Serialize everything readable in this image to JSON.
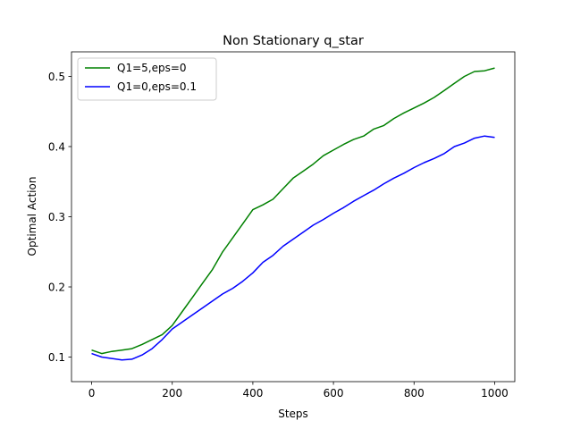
{
  "chart_data": {
    "type": "line",
    "title": "Non Stationary q_star",
    "xlabel": "Steps",
    "ylabel": "Optimal Action",
    "xlim": [
      -50,
      1050
    ],
    "ylim": [
      0.065,
      0.535
    ],
    "xticks": [
      0,
      200,
      400,
      600,
      800,
      1000
    ],
    "yticks": [
      0.1,
      0.2,
      0.3,
      0.4,
      0.5
    ],
    "xtick_labels": [
      "0",
      "200",
      "400",
      "600",
      "800",
      "1000"
    ],
    "ytick_labels": [
      "0.1",
      "0.2",
      "0.3",
      "0.4",
      "0.5"
    ],
    "legend_placement": "upper-left",
    "grid": false,
    "series": [
      {
        "name": "Q1=5,eps=0",
        "color": "#008000",
        "x": [
          0,
          25,
          50,
          75,
          100,
          125,
          150,
          175,
          200,
          225,
          250,
          275,
          300,
          325,
          350,
          375,
          400,
          425,
          450,
          475,
          500,
          525,
          550,
          575,
          600,
          625,
          650,
          675,
          700,
          725,
          750,
          775,
          800,
          825,
          850,
          875,
          900,
          925,
          950,
          975,
          1000
        ],
        "y": [
          0.11,
          0.105,
          0.108,
          0.11,
          0.112,
          0.118,
          0.125,
          0.132,
          0.145,
          0.165,
          0.185,
          0.205,
          0.225,
          0.25,
          0.27,
          0.29,
          0.31,
          0.317,
          0.325,
          0.34,
          0.355,
          0.365,
          0.375,
          0.387,
          0.395,
          0.403,
          0.41,
          0.415,
          0.425,
          0.43,
          0.44,
          0.448,
          0.455,
          0.462,
          0.47,
          0.48,
          0.49,
          0.5,
          0.507,
          0.508,
          0.512
        ]
      },
      {
        "name": "Q1=0,eps=0.1",
        "color": "#0000ff",
        "x": [
          0,
          25,
          50,
          75,
          100,
          125,
          150,
          175,
          200,
          225,
          250,
          275,
          300,
          325,
          350,
          375,
          400,
          425,
          450,
          475,
          500,
          525,
          550,
          575,
          600,
          625,
          650,
          675,
          700,
          725,
          750,
          775,
          800,
          825,
          850,
          875,
          900,
          925,
          950,
          975,
          1000
        ],
        "y": [
          0.105,
          0.1,
          0.098,
          0.096,
          0.097,
          0.103,
          0.112,
          0.125,
          0.14,
          0.15,
          0.16,
          0.17,
          0.18,
          0.19,
          0.198,
          0.208,
          0.22,
          0.235,
          0.245,
          0.258,
          0.268,
          0.278,
          0.288,
          0.296,
          0.305,
          0.313,
          0.322,
          0.33,
          0.338,
          0.347,
          0.355,
          0.362,
          0.37,
          0.377,
          0.383,
          0.39,
          0.4,
          0.405,
          0.412,
          0.415,
          0.413
        ]
      }
    ]
  }
}
